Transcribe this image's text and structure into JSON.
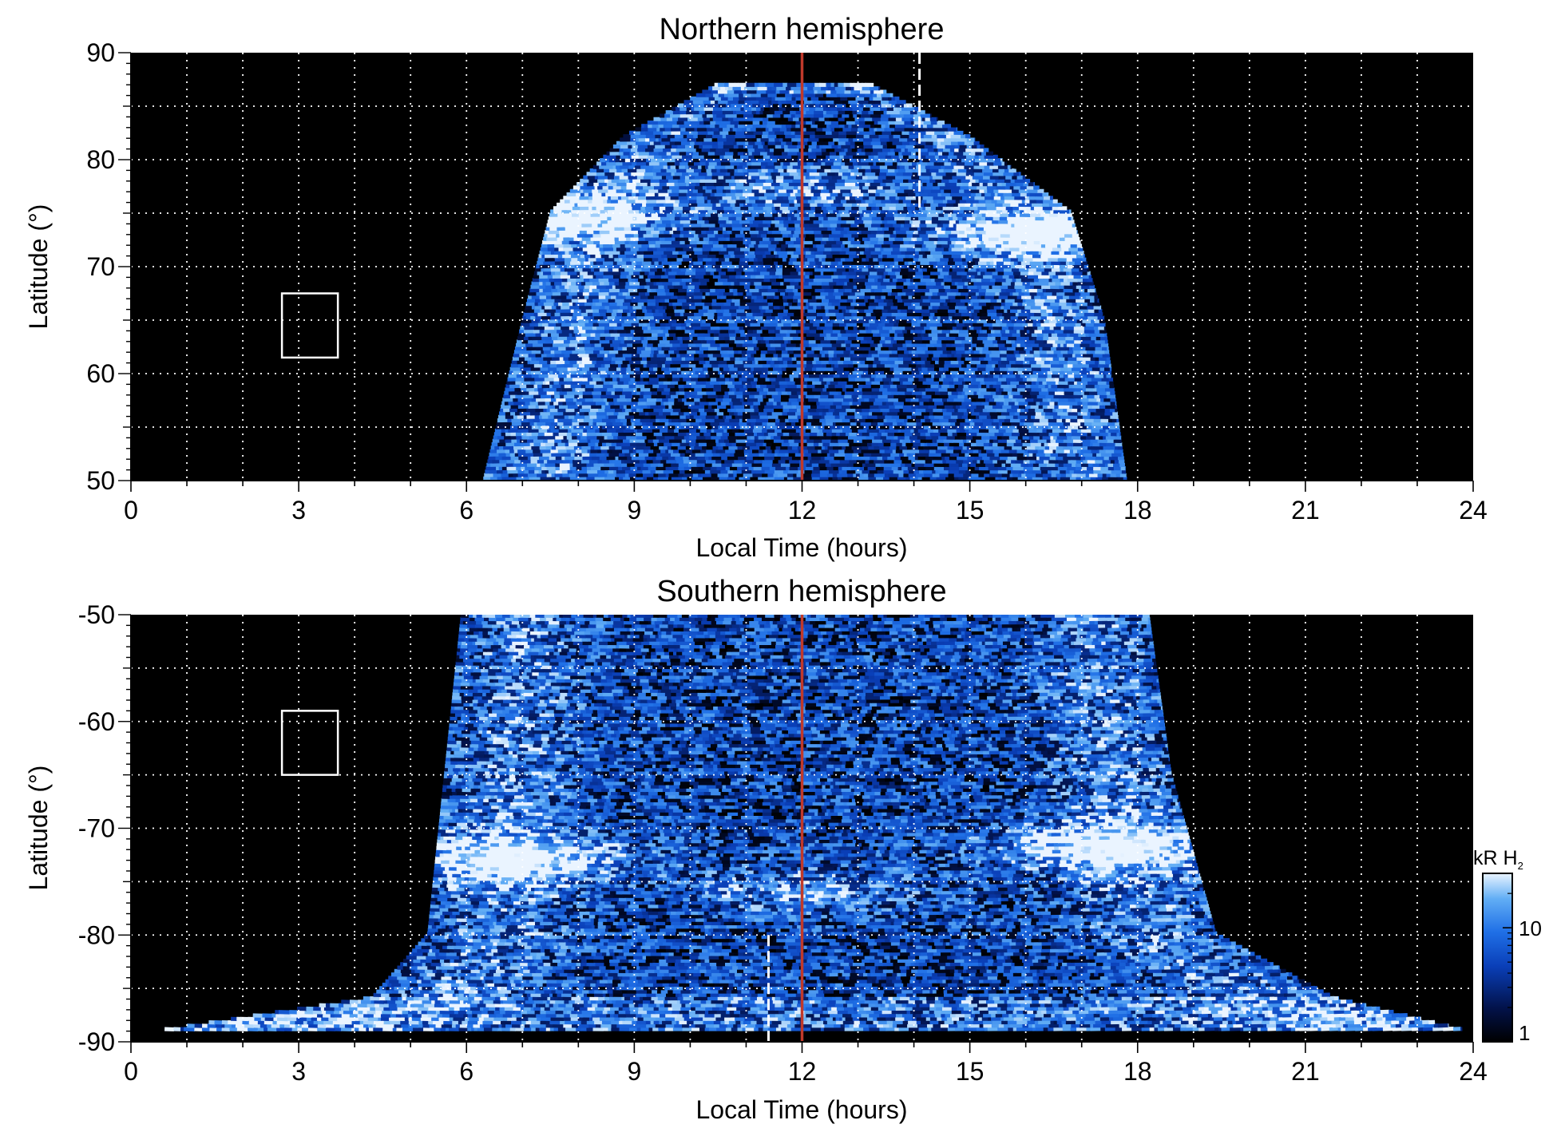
{
  "chart_data": [
    {
      "type": "heatmap",
      "title": "Northern hemisphere",
      "xlabel": "Local Time (hours)",
      "ylabel": "Latitude (°)",
      "xlim": [
        0,
        24
      ],
      "ylim": [
        50,
        90
      ],
      "xticks": [
        0,
        3,
        6,
        9,
        12,
        15,
        18,
        21,
        24
      ],
      "yticks": [
        50,
        60,
        70,
        80,
        90
      ],
      "grid": true,
      "noon_line_hours": 12,
      "noon_line_color": "#c0392b",
      "dashed_marker_hours": 14.1,
      "box": {
        "lt": [
          2.7,
          3.7
        ],
        "lat": [
          61.5,
          67.5
        ]
      },
      "emission_extent": {
        "lt_start": [
          6.3,
          7.0,
          7.5,
          8.8,
          10.5
        ],
        "lt_end": [
          17.8,
          17.4,
          16.8,
          15.0,
          13.2
        ],
        "lat": [
          50,
          65,
          75,
          82,
          87
        ]
      },
      "auroral_oval": [
        {
          "lt": 7.5,
          "lat": 74.5,
          "intensity": "high"
        },
        {
          "lt": 12,
          "lat": 77,
          "intensity": "medium"
        },
        {
          "lt": 16.2,
          "lat": 73,
          "intensity": "high"
        }
      ]
    },
    {
      "type": "heatmap",
      "title": "Southern hemisphere",
      "xlabel": "Local Time (hours)",
      "ylabel": "Latitude (°)",
      "xlim": [
        0,
        24
      ],
      "ylim": [
        -90,
        -50
      ],
      "xticks": [
        0,
        3,
        6,
        9,
        12,
        15,
        18,
        21,
        24
      ],
      "yticks": [
        -90,
        -80,
        -70,
        -60,
        -50
      ],
      "grid": true,
      "noon_line_hours": 12,
      "noon_line_color": "#c0392b",
      "dashed_marker_hours": 11.4,
      "box": {
        "lt": [
          2.7,
          3.7
        ],
        "lat": [
          -65,
          -59
        ]
      },
      "emission_extent": {
        "lt_start": [
          5.9,
          5.6,
          5.3,
          4.3,
          0.6
        ],
        "lt_end": [
          18.2,
          18.6,
          19.4,
          21.5,
          23.8
        ],
        "lat": [
          -50,
          -65,
          -80,
          -86,
          -89
        ]
      },
      "auroral_oval": [
        {
          "lt": 6.8,
          "lat": -73,
          "intensity": "high"
        },
        {
          "lt": 12,
          "lat": -76,
          "intensity": "medium"
        },
        {
          "lt": 17.5,
          "lat": -72,
          "intensity": "high"
        }
      ]
    }
  ],
  "colorbar": {
    "label": "kR H",
    "label_subscript": "2",
    "scale": "log",
    "range": [
      1,
      30
    ],
    "ticks": [
      1,
      10
    ],
    "tick_labels": [
      "1",
      "10"
    ],
    "colors": [
      "#000000",
      "#02124a",
      "#0a3fb8",
      "#1f6fe6",
      "#62aef5",
      "#eaf4ff"
    ]
  }
}
